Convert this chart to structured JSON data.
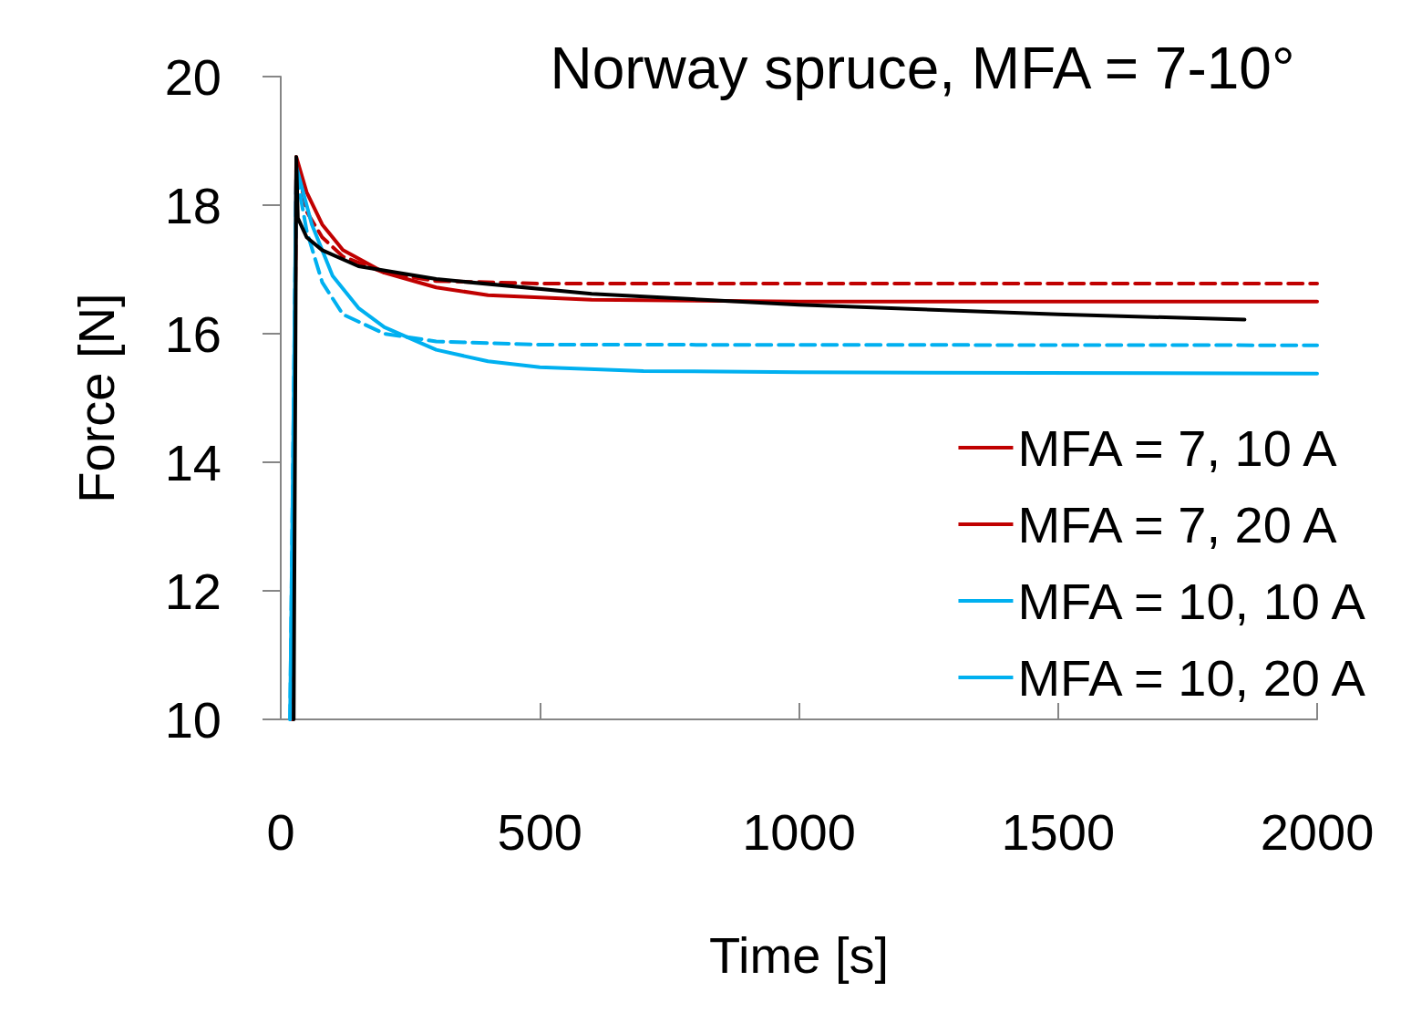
{
  "chart_data": {
    "type": "line",
    "title": "Norway spruce, MFA = 7-10°",
    "xlabel": "Time [s]",
    "ylabel": "Force [N]",
    "xlim": [
      0,
      2000
    ],
    "xticks": [
      0,
      500,
      1000,
      1500,
      2000
    ],
    "ylim": [
      10,
      20
    ],
    "yticks": [
      10,
      12,
      14,
      16,
      18,
      20
    ],
    "grid": false,
    "legend": "right",
    "marker": "none",
    "series": [
      {
        "name": "MFA = 7, 10 A",
        "color": "#c00000",
        "line_style": "solid",
        "x": [
          22,
          30,
          50,
          80,
          120,
          200,
          300,
          400,
          600,
          1000,
          2000
        ],
        "values": [
          10,
          18.75,
          18.2,
          17.7,
          17.3,
          16.95,
          16.72,
          16.6,
          16.53,
          16.5,
          16.5
        ]
      },
      {
        "name": "MFA = 7, 20 A",
        "color": "#c00000",
        "line_style": "dashed",
        "x": [
          22,
          30,
          50,
          80,
          120,
          200,
          300,
          500,
          2000
        ],
        "values": [
          10,
          18.7,
          17.9,
          17.5,
          17.2,
          16.95,
          16.82,
          16.78,
          16.78
        ]
      },
      {
        "name": "MFA = 10, 10 A",
        "color": "#00b0f0",
        "line_style": "solid",
        "x": [
          18,
          30,
          60,
          100,
          150,
          200,
          300,
          400,
          500,
          700,
          1000,
          2000
        ],
        "values": [
          10,
          18.6,
          17.7,
          16.9,
          16.4,
          16.1,
          15.75,
          15.57,
          15.48,
          15.42,
          15.4,
          15.38
        ]
      },
      {
        "name": "MFA = 10, 20 A",
        "color": "#00b0f0",
        "line_style": "dashed",
        "x": [
          18,
          30,
          50,
          80,
          120,
          200,
          300,
          500,
          2000
        ],
        "values": [
          10,
          18.5,
          17.6,
          16.8,
          16.3,
          16.0,
          15.88,
          15.83,
          15.82
        ]
      },
      {
        "color": "#000000",
        "line_style": "solid",
        "x": [
          25,
          28,
          30,
          33,
          50,
          80,
          150,
          300,
          600,
          1000,
          1500,
          1860
        ],
        "values": [
          10,
          15,
          18.75,
          17.8,
          17.5,
          17.3,
          17.05,
          16.85,
          16.62,
          16.45,
          16.3,
          16.22
        ]
      }
    ]
  }
}
